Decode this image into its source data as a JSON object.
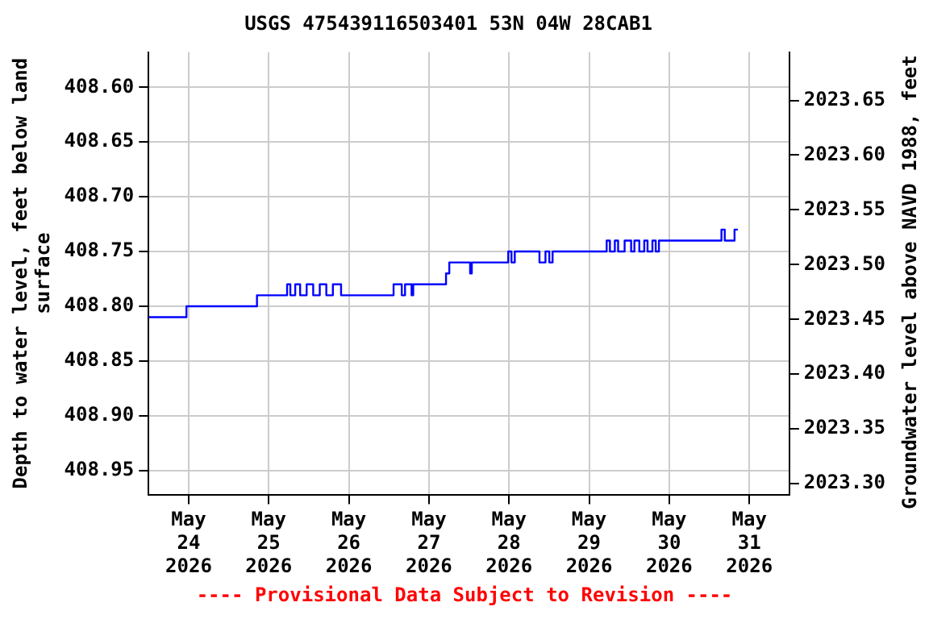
{
  "chart_data": {
    "type": "step",
    "title": "USGS 475439116503401 53N 04W 28CAB1",
    "ylabel": "Depth to water level, feet below land surface",
    "y2label": "Groundwater level above NAVD 1988, feet",
    "annotations": [
      "---- Provisional Data Subject to Revision ----"
    ],
    "x": [
      "2026-05-23T12:00",
      "2026-05-23T23:20",
      "2026-05-24T20:28",
      "2026-05-25T05:30",
      "2026-05-25T06:28",
      "2026-05-25T07:56",
      "2026-05-25T09:24",
      "2026-05-25T11:21",
      "2026-05-25T13:19",
      "2026-05-25T15:17",
      "2026-05-25T17:15",
      "2026-05-25T19:13",
      "2026-05-25T21:40",
      "2026-05-26T13:24",
      "2026-05-26T15:51",
      "2026-05-26T16:50",
      "2026-05-26T18:48",
      "2026-05-26T19:17",
      "2026-05-27T05:07",
      "2026-05-27T06:06",
      "2026-05-27T12:20",
      "2026-05-27T12:50",
      "2026-05-27T23:46",
      "2026-05-28T00:44",
      "2026-05-28T01:43",
      "2026-05-28T09:07",
      "2026-05-28T10:55",
      "2026-05-28T12:04",
      "2026-05-28T13:03",
      "2026-05-29T05:15",
      "2026-05-29T06:14",
      "2026-05-29T07:42",
      "2026-05-29T08:41",
      "2026-05-29T10:38",
      "2026-05-29T12:35",
      "2026-05-29T13:34",
      "2026-05-29T15:02",
      "2026-05-29T16:31",
      "2026-05-29T17:30",
      "2026-05-29T18:58",
      "2026-05-29T19:57",
      "2026-05-29T20:55",
      "2026-05-29T22:53",
      "2026-05-30T15:39",
      "2026-05-30T16:38",
      "2026-05-30T19:34",
      "2026-05-30T20:33"
    ],
    "series": [
      {
        "color": "#0000ff",
        "values": [
          408.81,
          408.8,
          408.79,
          408.78,
          408.79,
          408.78,
          408.79,
          408.78,
          408.79,
          408.78,
          408.79,
          408.78,
          408.79,
          408.78,
          408.79,
          408.78,
          408.79,
          408.78,
          408.77,
          408.76,
          408.77,
          408.76,
          408.75,
          408.76,
          408.75,
          408.76,
          408.75,
          408.76,
          408.75,
          408.74,
          408.75,
          408.74,
          408.75,
          408.74,
          408.75,
          408.74,
          408.75,
          408.74,
          408.75,
          408.74,
          408.75,
          408.74,
          408.74,
          408.73,
          408.74,
          408.73,
          408.73
        ]
      }
    ],
    "xlim": [
      "2026-05-23T12:00",
      "2026-05-31T12:00"
    ],
    "xticks": [
      {
        "value": "2026-05-24",
        "label": "May 24 2026"
      },
      {
        "value": "2026-05-25",
        "label": "May 25 2026"
      },
      {
        "value": "2026-05-26",
        "label": "May 26 2026"
      },
      {
        "value": "2026-05-27",
        "label": "May 27 2026"
      },
      {
        "value": "2026-05-28",
        "label": "May 28 2026"
      },
      {
        "value": "2026-05-29",
        "label": "May 29 2026"
      },
      {
        "value": "2026-05-30",
        "label": "May 30 2026"
      },
      {
        "value": "2026-05-31",
        "label": "May 31 2026"
      }
    ],
    "ylim": [
      408.972,
      408.568
    ],
    "yticks": [
      {
        "value": 408.6,
        "label": "408.60"
      },
      {
        "value": 408.65,
        "label": "408.65"
      },
      {
        "value": 408.7,
        "label": "408.70"
      },
      {
        "value": 408.75,
        "label": "408.75"
      },
      {
        "value": 408.8,
        "label": "408.80"
      },
      {
        "value": 408.85,
        "label": "408.85"
      },
      {
        "value": 408.9,
        "label": "408.90"
      },
      {
        "value": 408.95,
        "label": "408.95"
      }
    ],
    "y2lim": [
      2023.29,
      2023.694
    ],
    "y2ticks": [
      {
        "value": 2023.3,
        "label": "2023.30"
      },
      {
        "value": 2023.35,
        "label": "2023.35"
      },
      {
        "value": 2023.4,
        "label": "2023.40"
      },
      {
        "value": 2023.45,
        "label": "2023.45"
      },
      {
        "value": 2023.5,
        "label": "2023.50"
      },
      {
        "value": 2023.55,
        "label": "2023.55"
      },
      {
        "value": 2023.6,
        "label": "2023.60"
      },
      {
        "value": 2023.65,
        "label": "2023.65"
      }
    ],
    "grid": true,
    "legend": false,
    "marker": "none",
    "line_style": "solid"
  }
}
